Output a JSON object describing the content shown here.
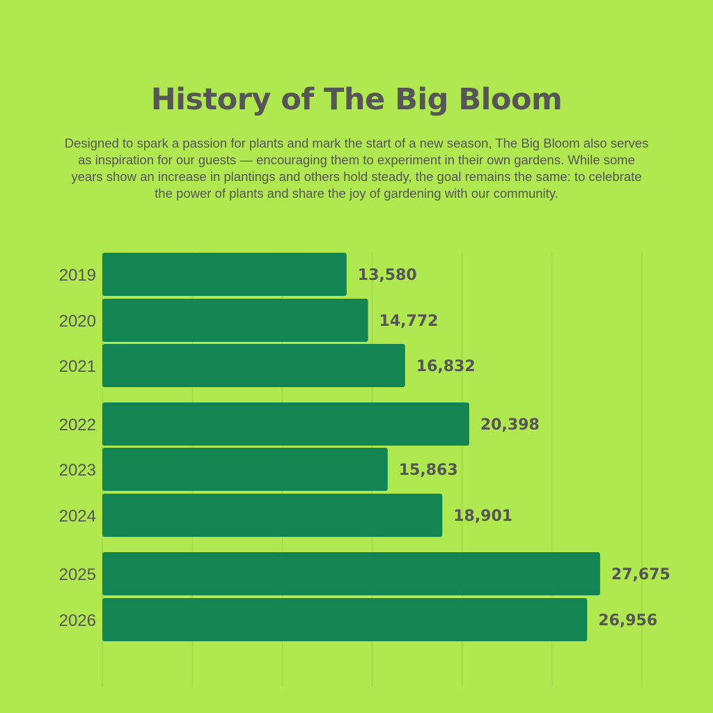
{
  "colors": {
    "background": "#b0e84f",
    "bar": "#128552",
    "text": "#565656",
    "grid": "#9ccf49"
  },
  "header": {
    "title": "History of The Big Bloom",
    "description": "Designed to spark a passion for plants and mark the start of a new season, The Big Bloom also serves as inspiration for our guests — encouraging them to experiment in their own gardens. While some years show an increase in plantings and others hold steady, the goal remains the same: to celebrate the power of plants and share the joy of gardening with our community."
  },
  "chart_data": {
    "type": "bar",
    "orientation": "horizontal",
    "categories": [
      "2019",
      "2020",
      "2021",
      "2022",
      "2023",
      "2024",
      "2025",
      "2026"
    ],
    "values": [
      13580,
      14772,
      16832,
      20398,
      15863,
      18901,
      27675,
      26956
    ],
    "value_labels": [
      "13,580",
      "14,772",
      "16,832",
      "20,398",
      "15,863",
      "18,901",
      "27,675",
      "26,956"
    ],
    "title": "History of The Big Bloom",
    "xlabel": "",
    "ylabel": "",
    "xlim": [
      0,
      30000
    ],
    "grid": true,
    "legend": "none"
  }
}
